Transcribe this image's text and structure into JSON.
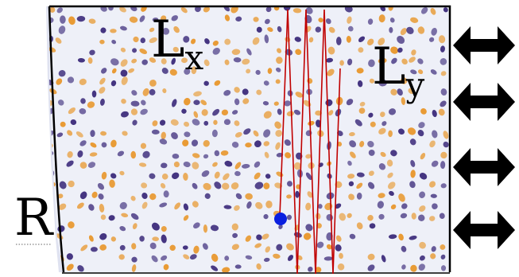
{
  "labels": {
    "lx_main": "L",
    "lx_sub": "x",
    "ly_main": "L",
    "ly_sub": "y",
    "r": "R"
  },
  "colors": {
    "wave_positive": "#e8962a",
    "wave_negative": "#3b2a7a",
    "wave_background": "#eef0f8",
    "ray": "#c00000",
    "point": "#0a1fe0",
    "frame": "#000000",
    "arrow": "#000000"
  },
  "icons": {
    "arrow": "double-headed-arrow-icon"
  },
  "arrows_count_note": "four"
}
